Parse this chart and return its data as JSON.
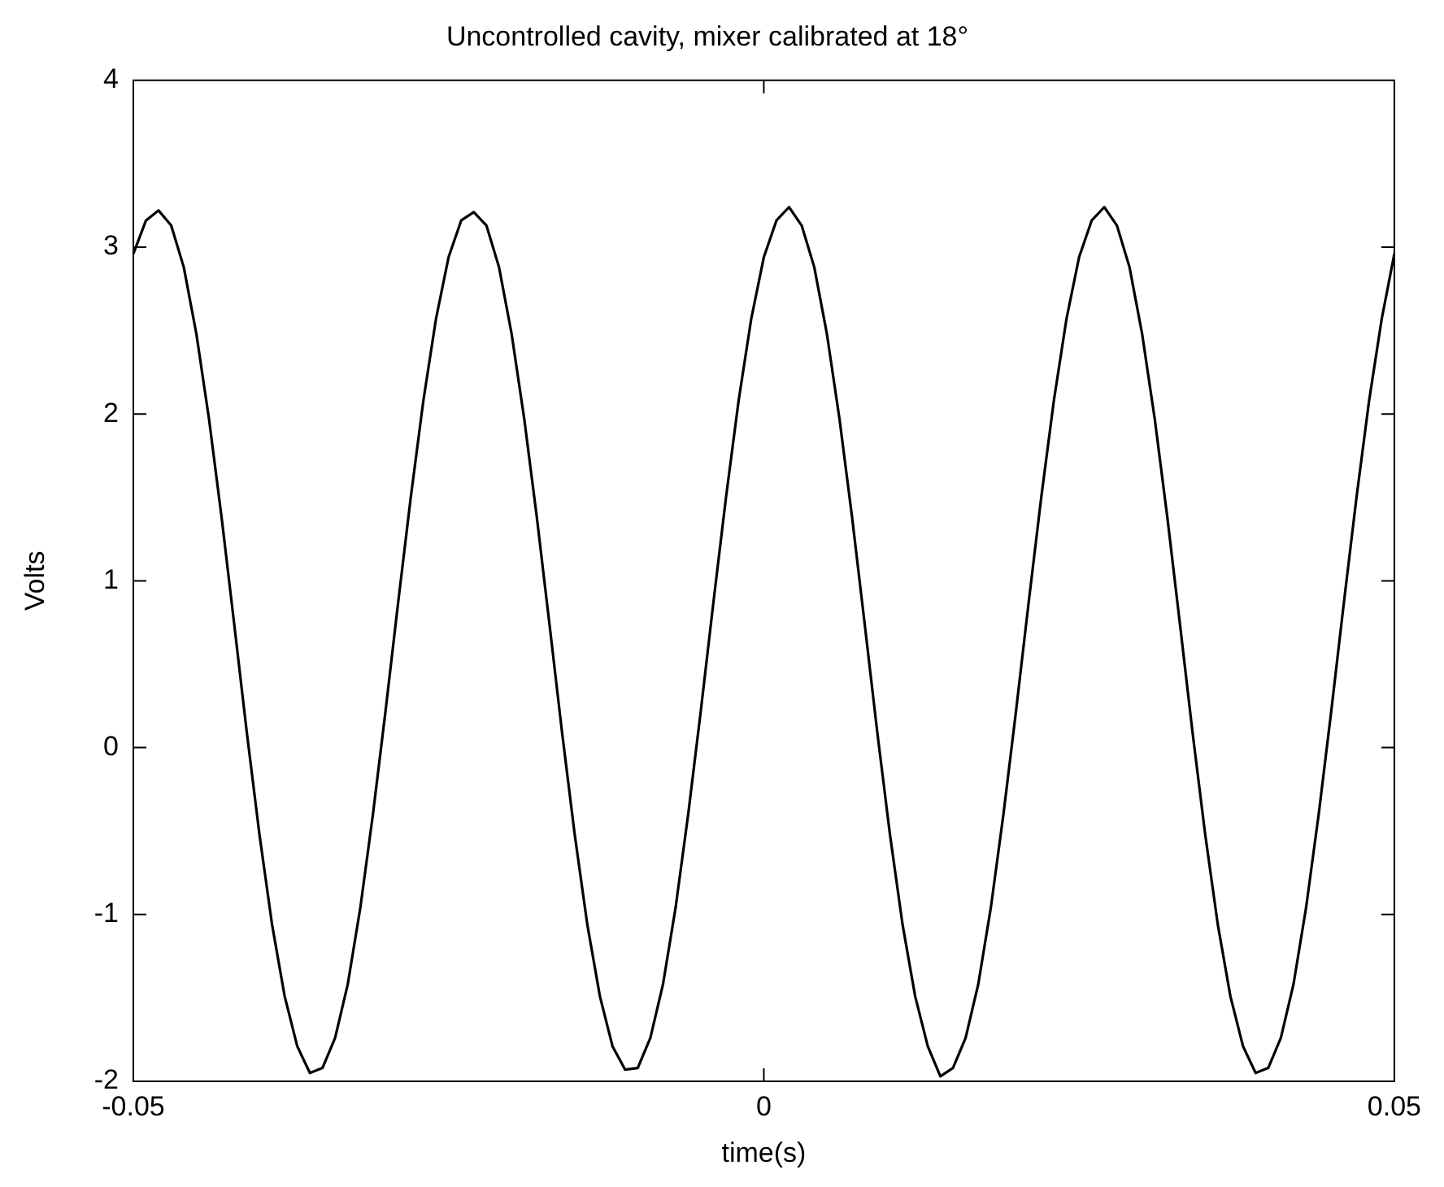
{
  "chart_data": {
    "type": "line",
    "title": "Uncontrolled cavity, mixer calibrated at 18°",
    "xlabel": "time(s)",
    "ylabel": "Volts",
    "x": [
      -0.05,
      -0.049,
      -0.048,
      -0.047,
      -0.046,
      -0.045,
      -0.044,
      -0.043,
      -0.042,
      -0.041,
      -0.04,
      -0.039,
      -0.038,
      -0.037,
      -0.036,
      -0.035,
      -0.034,
      -0.033,
      -0.032,
      -0.031,
      -0.03,
      -0.029,
      -0.028,
      -0.027,
      -0.026,
      -0.025,
      -0.024,
      -0.023,
      -0.022,
      -0.021,
      -0.02,
      -0.019,
      -0.018,
      -0.017,
      -0.016,
      -0.015,
      -0.014,
      -0.013,
      -0.012,
      -0.011,
      -0.01,
      -0.009,
      -0.008,
      -0.007,
      -0.006,
      -0.005,
      -0.004,
      -0.003,
      -0.002,
      -0.001,
      0,
      0.001,
      0.002,
      0.003,
      0.004,
      0.005,
      0.006,
      0.007,
      0.008,
      0.009,
      0.01,
      0.011,
      0.012,
      0.013,
      0.014,
      0.015,
      0.016,
      0.017,
      0.018,
      0.019,
      0.02,
      0.021,
      0.022,
      0.023,
      0.024,
      0.025,
      0.026,
      0.027,
      0.028,
      0.029,
      0.03,
      0.031,
      0.032,
      0.033,
      0.034,
      0.035,
      0.036,
      0.037,
      0.038,
      0.039,
      0.04,
      0.041,
      0.042,
      0.043,
      0.044,
      0.045,
      0.046,
      0.047,
      0.048,
      0.049,
      0.05
    ],
    "series": [
      {
        "color": "#000000",
        "values": [
          2.96,
          3.16,
          3.22,
          3.13,
          2.88,
          2.48,
          1.97,
          1.38,
          0.74,
          0.09,
          -0.52,
          -1.06,
          -1.49,
          -1.79,
          -1.95,
          -1.92,
          -1.74,
          -1.42,
          -0.96,
          -0.4,
          0.22,
          0.87,
          1.5,
          2.08,
          2.57,
          2.94,
          3.16,
          3.21,
          3.13,
          2.88,
          2.48,
          1.97,
          1.38,
          0.74,
          0.09,
          -0.52,
          -1.06,
          -1.49,
          -1.79,
          -1.93,
          -1.92,
          -1.74,
          -1.42,
          -0.96,
          -0.4,
          0.22,
          0.87,
          1.5,
          2.08,
          2.57,
          2.94,
          3.16,
          3.24,
          3.13,
          2.88,
          2.48,
          1.97,
          1.38,
          0.74,
          0.09,
          -0.52,
          -1.06,
          -1.49,
          -1.79,
          -1.97,
          -1.92,
          -1.74,
          -1.42,
          -0.96,
          -0.4,
          0.22,
          0.87,
          1.5,
          2.08,
          2.57,
          2.94,
          3.16,
          3.24,
          3.13,
          2.88,
          2.48,
          1.97,
          1.38,
          0.74,
          0.09,
          -0.52,
          -1.06,
          -1.49,
          -1.79,
          -1.95,
          -1.92,
          -1.74,
          -1.42,
          -0.96,
          -0.4,
          0.22,
          0.87,
          1.5,
          2.08,
          2.57,
          2.96
        ]
      }
    ],
    "xlim": [
      -0.05,
      0.05
    ],
    "xticks": [
      -0.05,
      0,
      0.05
    ],
    "ylim": [
      -2,
      4
    ],
    "yticks": [
      -2,
      -1,
      0,
      1,
      2,
      3,
      4
    ],
    "line_style": "solid"
  }
}
